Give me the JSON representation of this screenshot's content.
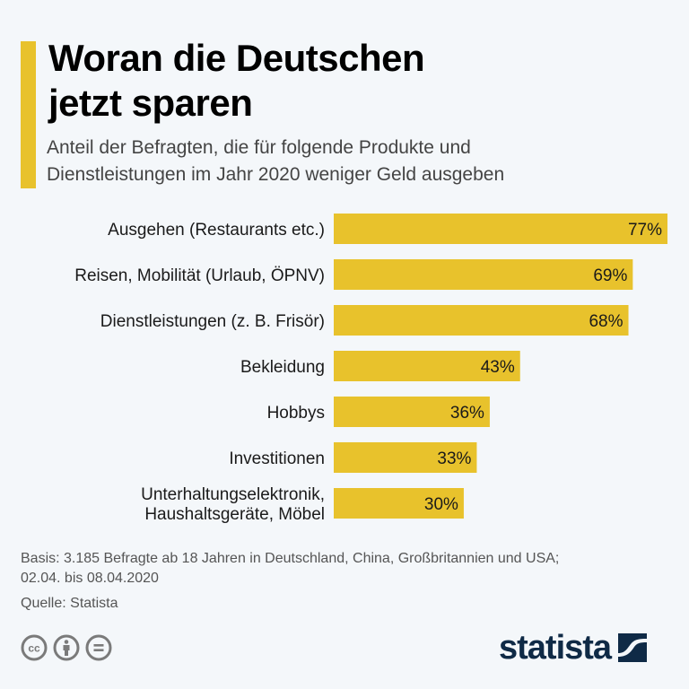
{
  "colors": {
    "accent": "#e8c22c",
    "bar": "#e8c22c",
    "background": "#f4f7fa",
    "logo": "#0f2a46",
    "icon_gray": "#7a7a7a"
  },
  "header": {
    "title_line1": "Woran die Deutschen",
    "title_line2": "jetzt sparen",
    "subtitle_line1": "Anteil der Befragten, die für folgende Produkte und",
    "subtitle_line2": "Dienstleistungen im Jahr 2020 weniger Geld ausgeben"
  },
  "chart_data": {
    "type": "bar",
    "orientation": "horizontal",
    "title": "Woran die Deutschen jetzt sparen",
    "subtitle": "Anteil der Befragten, die für folgende Produkte und Dienstleistungen im Jahr 2020 weniger Geld ausgeben",
    "categories": [
      [
        "Ausgehen (Restaurants etc.)"
      ],
      [
        "Reisen, Mobilität (Urlaub, ÖPNV)"
      ],
      [
        "Dienstleistungen (z. B. Frisör)"
      ],
      [
        "Bekleidung"
      ],
      [
        "Hobbys"
      ],
      [
        "Investitionen"
      ],
      [
        "Unterhaltungselektronik,",
        "Haushaltsgeräte, Möbel"
      ]
    ],
    "values": [
      77,
      69,
      68,
      43,
      36,
      33,
      30
    ],
    "value_labels": [
      "77%",
      "69%",
      "68%",
      "43%",
      "36%",
      "33%",
      "30%"
    ],
    "unit": "%",
    "xlabel": "",
    "ylabel": "",
    "xlim": [
      0,
      77
    ],
    "grid": false,
    "legend": "none"
  },
  "footer": {
    "basis_line1": "Basis: 3.185 Befragte ab 18 Jahren in Deutschland, China, Großbritannien und USA;",
    "basis_line2": "02.04. bis 08.04.2020",
    "source": "Quelle: Statista",
    "license_icons": [
      "creative-commons-icon",
      "attribution-icon",
      "no-derivatives-icon"
    ],
    "logo_text": "statista"
  }
}
